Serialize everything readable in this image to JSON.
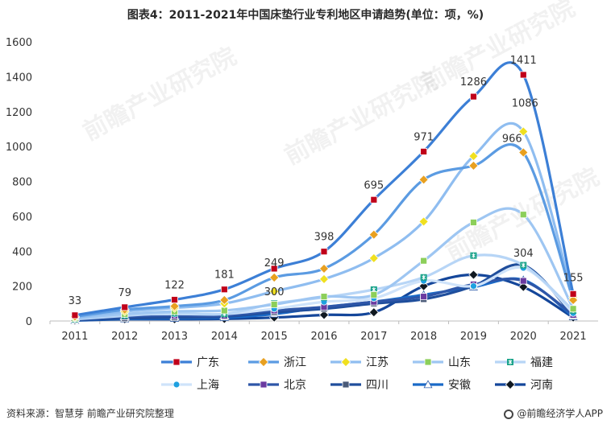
{
  "title": "图表4：2011-2021年中国床垫行业专利地区申请趋势(单位：项，%)",
  "source": "资料来源：智慧芽 前瞻产业研究院整理",
  "brand": "@前瞻经济学人APP",
  "watermark": "前瞻产业研究院",
  "chart_data": {
    "type": "line",
    "title": "图表4：2011-2021年中国床垫行业专利地区申请趋势(单位：项，%)",
    "x": [
      "2011",
      "2012",
      "2013",
      "2014",
      "2015",
      "2016",
      "2017",
      "2018",
      "2019",
      "2020",
      "2021"
    ],
    "ylim": [
      0,
      1600
    ],
    "yticks": [
      0,
      200,
      400,
      600,
      800,
      1000,
      1200,
      1400,
      1600
    ],
    "grid": false,
    "legend_position": "bottom",
    "series": [
      {
        "name": "广东",
        "color": "#3c7fd6",
        "marker": "square",
        "markerColor": "#c0001a",
        "values": [
          33,
          79,
          122,
          181,
          300,
          398,
          695,
          971,
          1286,
          1411,
          155
        ]
      },
      {
        "name": "浙江",
        "color": "#5b9be2",
        "marker": "diamond",
        "markerColor": "#e8a020",
        "values": [
          25,
          65,
          85,
          120,
          249,
          300,
          495,
          810,
          890,
          966,
          120
        ]
      },
      {
        "name": "江苏",
        "color": "#8fbdf0",
        "marker": "diamond",
        "markerColor": "#f0e020",
        "values": [
          20,
          55,
          75,
          100,
          170,
          240,
          360,
          570,
          945,
          1086,
          135
        ]
      },
      {
        "name": "山东",
        "color": "#9ec6f2",
        "marker": "square",
        "markerColor": "#8ccf5a",
        "values": [
          15,
          40,
          55,
          60,
          95,
          140,
          150,
          345,
          565,
          610,
          70
        ]
      },
      {
        "name": "福建",
        "color": "#b7d5f6",
        "marker": "star",
        "markerColor": "#1aa38a",
        "values": [
          10,
          30,
          45,
          40,
          100,
          135,
          180,
          250,
          375,
          320,
          60
        ]
      },
      {
        "name": "上海",
        "color": "#cfe3fa",
        "marker": "circle",
        "markerColor": "#1ea0e0",
        "values": [
          12,
          35,
          40,
          40,
          70,
          110,
          130,
          230,
          200,
          304,
          45
        ]
      },
      {
        "name": "北京",
        "color": "#2e56a8",
        "marker": "square",
        "markerColor": "#6a3aa0",
        "values": [
          8,
          25,
          30,
          30,
          60,
          80,
          110,
          140,
          210,
          230,
          35
        ]
      },
      {
        "name": "四川",
        "color": "#1f4e9c",
        "marker": "square",
        "markerColor": "#4a5a78",
        "values": [
          5,
          15,
          20,
          25,
          50,
          70,
          100,
          125,
          200,
          320,
          30
        ]
      },
      {
        "name": "安徽",
        "color": "#1a6ac8",
        "marker": "triangle",
        "markerColor": "#ffffff",
        "values": [
          4,
          12,
          15,
          20,
          40,
          80,
          110,
          150,
          195,
          235,
          25
        ]
      },
      {
        "name": "河南",
        "color": "#14469a",
        "marker": "diamond",
        "markerColor": "#101820",
        "values": [
          3,
          10,
          10,
          12,
          20,
          35,
          50,
          200,
          265,
          195,
          20
        ]
      }
    ],
    "data_labels": [
      {
        "x": "2011",
        "value": 33,
        "text": "33"
      },
      {
        "x": "2012",
        "value": 79,
        "text": "79"
      },
      {
        "x": "2013",
        "value": 122,
        "text": "122"
      },
      {
        "x": "2014",
        "value": 181,
        "text": "181"
      },
      {
        "x": "2015",
        "value": 249,
        "text": "249"
      },
      {
        "x": "2015",
        "value": 300,
        "text": "300"
      },
      {
        "x": "2016",
        "value": 398,
        "text": "398"
      },
      {
        "x": "2017",
        "value": 695,
        "text": "695"
      },
      {
        "x": "2018",
        "value": 971,
        "text": "971"
      },
      {
        "x": "2019",
        "value": 1286,
        "text": "1286"
      },
      {
        "x": "2020",
        "value": 1411,
        "text": "1411"
      },
      {
        "x": "2020",
        "value": 1086,
        "text": "1086"
      },
      {
        "x": "2020",
        "value": 966,
        "text": "966"
      },
      {
        "x": "2020",
        "value": 304,
        "text": "304"
      },
      {
        "x": "2021",
        "value": 155,
        "text": "155"
      }
    ]
  }
}
